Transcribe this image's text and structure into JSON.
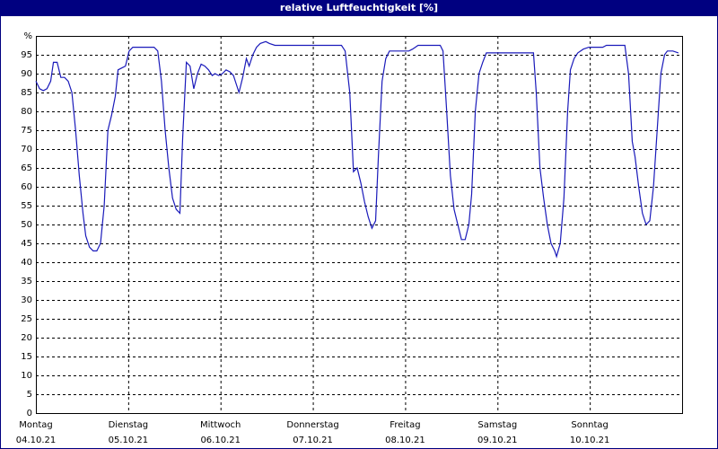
{
  "chart_data": {
    "type": "line",
    "title": "relative Luftfeuchtigkeit [%]",
    "xlim": [
      0,
      7
    ],
    "xticks": [
      {
        "value": 0,
        "label": [
          "Montag",
          "04.10.21"
        ]
      },
      {
        "value": 1,
        "label": [
          "Dienstag",
          "05.10.21"
        ]
      },
      {
        "value": 2,
        "label": [
          "Mittwoch",
          "06.10.21"
        ]
      },
      {
        "value": 3,
        "label": [
          "Donnerstag",
          "07.10.21"
        ]
      },
      {
        "value": 4,
        "label": [
          "Freitag",
          "08.10.21"
        ]
      },
      {
        "value": 5,
        "label": [
          "Samstag",
          "09.10.21"
        ]
      },
      {
        "value": 6,
        "label": [
          "Sonntag",
          "10.10.21"
        ]
      }
    ],
    "ylim": [
      0,
      100
    ],
    "yticks": [
      {
        "value": 100,
        "label": "%"
      },
      95,
      90,
      85,
      80,
      75,
      70,
      65,
      60,
      55,
      50,
      45,
      40,
      35,
      30,
      25,
      20,
      15,
      10,
      5,
      0
    ],
    "grid": true,
    "series": [
      {
        "color": "#1a1aba",
        "x": [
          0,
          0.04,
          0.08,
          0.12,
          0.16,
          0.19,
          0.23,
          0.27,
          0.31,
          0.35,
          0.39,
          0.43,
          0.47,
          0.51,
          0.54,
          0.58,
          0.62,
          0.66,
          0.7,
          0.74,
          0.78,
          0.82,
          0.86,
          0.89,
          0.93,
          0.97,
          1.01,
          1.05,
          1.12,
          1.22,
          1.28,
          1.32,
          1.36,
          1.4,
          1.44,
          1.48,
          1.52,
          1.56,
          1.59,
          1.63,
          1.67,
          1.71,
          1.75,
          1.79,
          1.83,
          1.87,
          1.91,
          1.94,
          1.98,
          2.02,
          2.06,
          2.1,
          2.14,
          2.2,
          2.24,
          2.28,
          2.31,
          2.35,
          2.39,
          2.43,
          2.49,
          2.53,
          2.59,
          2.64,
          2.72,
          2.92,
          3.11,
          3.31,
          3.35,
          3.4,
          3.44,
          3.48,
          3.52,
          3.56,
          3.6,
          3.64,
          3.68,
          3.71,
          3.75,
          3.79,
          3.83,
          3.89,
          3.99,
          4.04,
          4.08,
          4.14,
          4.28,
          4.38,
          4.41,
          4.45,
          4.49,
          4.53,
          4.57,
          4.61,
          4.65,
          4.69,
          4.72,
          4.76,
          4.8,
          4.84,
          4.88,
          4.96,
          5.15,
          5.35,
          5.39,
          5.42,
          5.46,
          5.5,
          5.54,
          5.58,
          5.62,
          5.64,
          5.68,
          5.72,
          5.76,
          5.79,
          5.83,
          5.87,
          5.93,
          5.99,
          6.03,
          6.11,
          6.14,
          6.18,
          6.38,
          6.42,
          6.46,
          6.49,
          6.53,
          6.57,
          6.61,
          6.65,
          6.69,
          6.73,
          6.77,
          6.81,
          6.84,
          6.9,
          6.96
        ],
        "values": [
          88,
          86,
          85.5,
          86,
          88,
          93,
          93,
          89,
          89,
          88,
          85,
          75,
          63,
          53,
          47,
          44,
          43,
          43,
          45,
          55,
          75,
          79,
          84,
          91,
          91.5,
          92,
          96,
          97,
          97,
          97,
          97,
          96,
          88,
          75,
          65,
          57,
          54,
          53,
          73,
          93,
          92,
          86,
          90,
          92.5,
          92,
          91,
          89.5,
          90,
          89.5,
          90,
          91,
          90.5,
          89.5,
          85,
          89,
          94,
          92,
          95,
          97,
          98,
          98.5,
          98,
          97.5,
          97.5,
          97.5,
          97.5,
          97.5,
          97.5,
          96,
          85,
          64,
          65,
          61,
          56,
          52,
          49,
          51,
          68,
          88,
          94,
          96,
          96,
          96,
          96,
          96.5,
          97.5,
          97.5,
          97.5,
          96,
          80,
          63,
          54,
          50,
          46,
          46,
          50,
          58,
          80,
          90,
          93,
          95.5,
          95.5,
          95.5,
          95.5,
          95.5,
          85,
          65,
          57,
          50,
          45,
          43,
          41.5,
          45,
          57,
          80,
          91,
          94,
          95.5,
          96.5,
          97,
          97,
          97,
          97,
          97.5,
          97.5,
          90,
          72,
          68,
          60,
          53,
          50,
          51,
          60,
          75,
          90,
          95,
          96,
          96,
          95.5
        ]
      }
    ]
  }
}
